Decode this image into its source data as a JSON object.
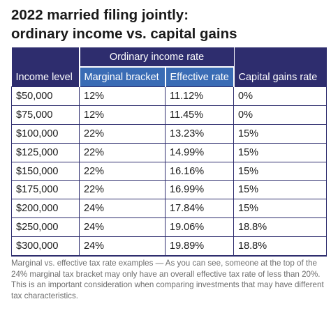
{
  "title": {
    "line1": "2022 married filing jointly:",
    "line2": "ordinary income vs. capital gains"
  },
  "table": {
    "group_header": "Ordinary income rate",
    "columns": [
      "Income level",
      "Marginal bracket",
      "Effective rate",
      "Capital gains rate"
    ],
    "rows": [
      [
        "$50,000",
        "12%",
        "11.12%",
        "0%"
      ],
      [
        "$75,000",
        "12%",
        "11.45%",
        "0%"
      ],
      [
        "$100,000",
        "22%",
        "13.23%",
        "15%"
      ],
      [
        "$125,000",
        "22%",
        "14.99%",
        "15%"
      ],
      [
        "$150,000",
        "22%",
        "16.16%",
        "15%"
      ],
      [
        "$175,000",
        "22%",
        "16.99%",
        "15%"
      ],
      [
        "$200,000",
        "24%",
        "17.84%",
        "15%"
      ],
      [
        "$250,000",
        "24%",
        "19.06%",
        "18.8%"
      ],
      [
        "$300,000",
        "24%",
        "19.89%",
        "18.8%"
      ]
    ]
  },
  "caption": "Marginal vs. effective tax rate examples — As you can see, someone at the top of the 24% marginal tax bracket may only have an overall effective tax rate of less than 20%. This is an important consideration when comparing investments that may have different tax characteristics.",
  "colors": {
    "header_dark": "#2e2d6e",
    "header_blue": "#3a6cb5",
    "caption_text": "#6e6e6e"
  }
}
